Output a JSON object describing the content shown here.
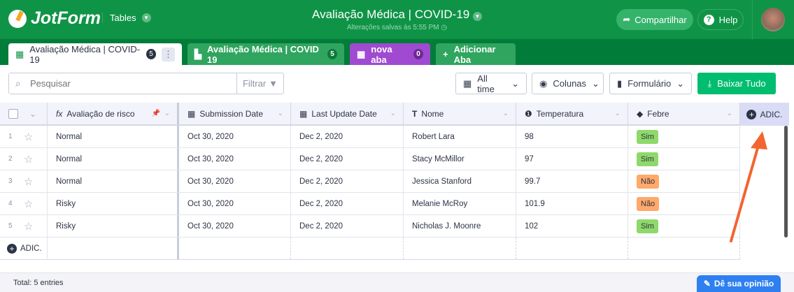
{
  "header": {
    "logo": "JotForm",
    "tables_label": "Tables",
    "title": "Avaliação Médica | COVID-19",
    "saved": "Alterações salvas às 5:55 PM",
    "share": "Compartilhar",
    "help": "Help",
    "accent": "#0f9447"
  },
  "tabs": [
    {
      "label": "Avaliação Médica | COVID-19",
      "count": "5",
      "active": true
    },
    {
      "label": "Avaliação Médica | COVID 19",
      "count": "5"
    },
    {
      "label": "nova aba",
      "count": "0",
      "color": "#a04ad1"
    },
    {
      "label": "Adicionar Aba"
    }
  ],
  "toolbar": {
    "search_placeholder": "Pesquisar",
    "filter": "Filtrar",
    "all_time": "All time",
    "columns": "Colunas",
    "form": "Formulário",
    "download": "Baixar Tudo"
  },
  "columns": [
    "Avaliação de risco",
    "Submission Date",
    "Last Update Date",
    "Nome",
    "Temperatura",
    "Febre"
  ],
  "add_column": "ADIC.",
  "rows": [
    {
      "n": "1",
      "risk": "Normal",
      "sub": "Oct 30, 2020",
      "upd": "Dec 2, 2020",
      "name": "Robert Lara",
      "temp": "98",
      "febre": "Sim"
    },
    {
      "n": "2",
      "risk": "Normal",
      "sub": "Oct 30, 2020",
      "upd": "Dec 2, 2020",
      "name": "Stacy McMillor",
      "temp": "97",
      "febre": "Sim"
    },
    {
      "n": "3",
      "risk": "Normal",
      "sub": "Oct 30, 2020",
      "upd": "Dec 2, 2020",
      "name": "Jessica Stanford",
      "temp": "99.7",
      "febre": "Não"
    },
    {
      "n": "4",
      "risk": "Risky",
      "sub": "Oct 30, 2020",
      "upd": "Dec 2, 2020",
      "name": "Melanie McRoy",
      "temp": "101.9",
      "febre": "Não"
    },
    {
      "n": "5",
      "risk": "Risky",
      "sub": "Oct 30, 2020",
      "upd": "Dec 2, 2020",
      "name": "Nicholas J. Moonre",
      "temp": "102",
      "febre": "Sim"
    }
  ],
  "add_row": "ADIC.",
  "footer": {
    "total": "Total: 5 entries",
    "feedback": "Dê sua opinião"
  }
}
